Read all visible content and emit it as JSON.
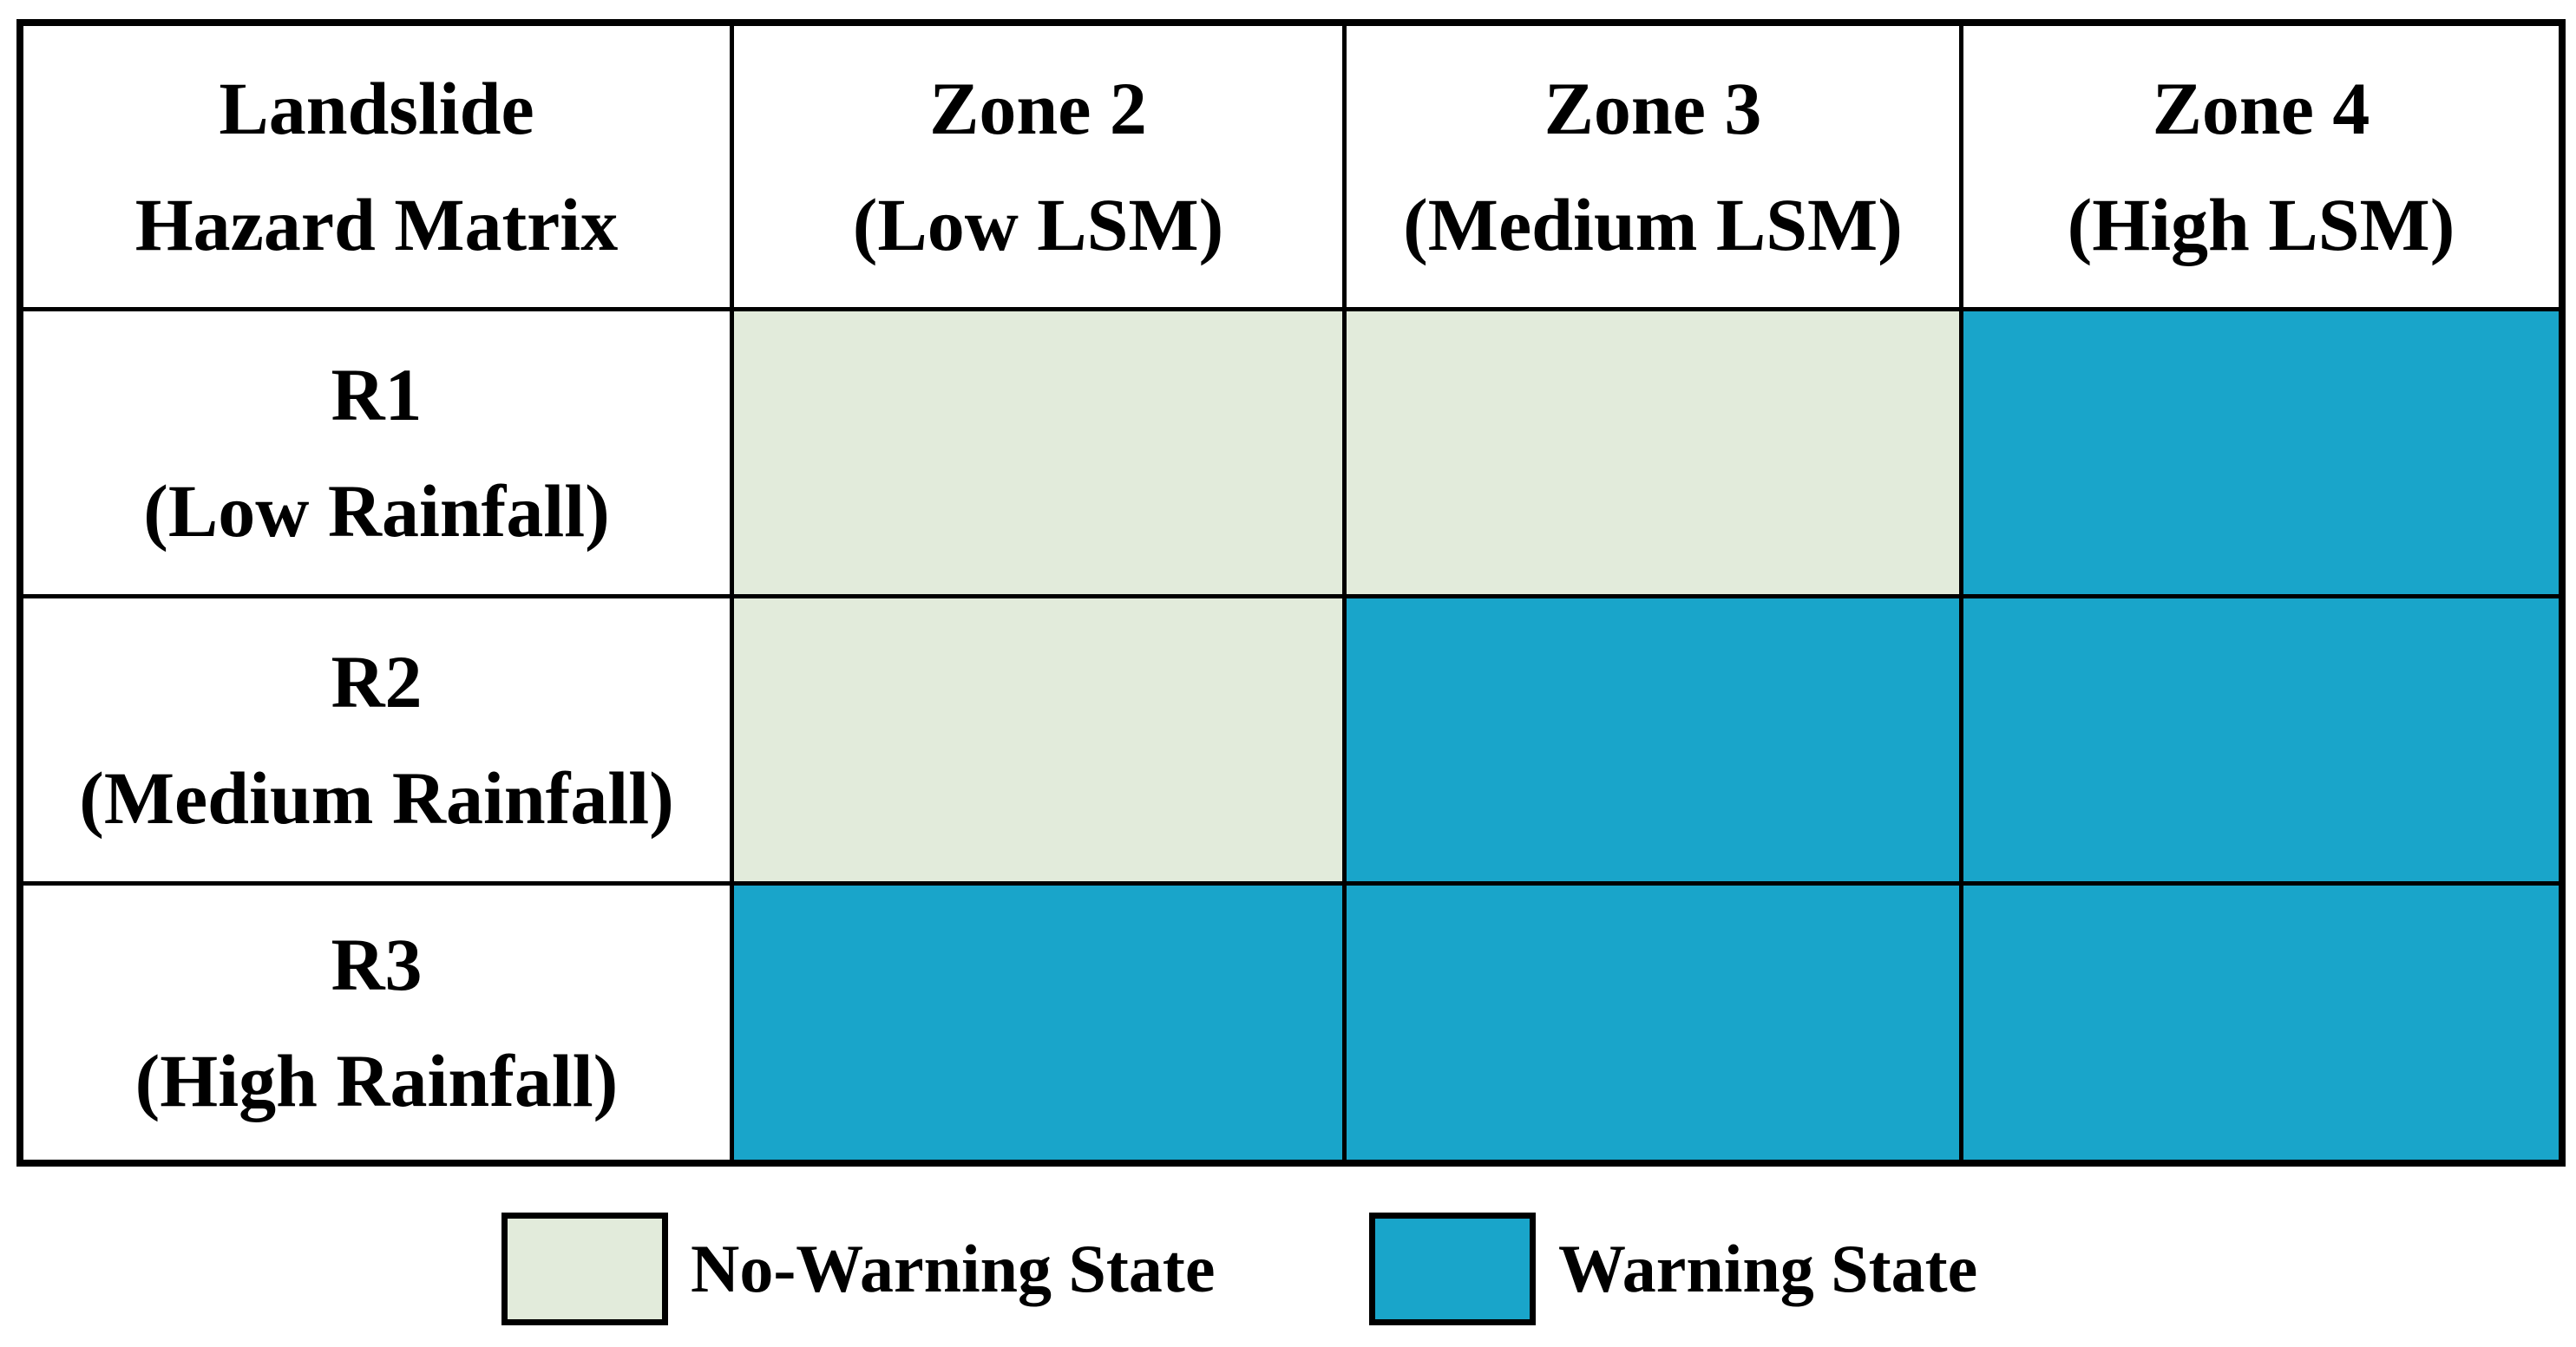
{
  "title": "Landslide Hazard Matrix",
  "colors": {
    "no_warning": "#e2ebdb",
    "warning": "#19a5ca",
    "border": "#000000",
    "text": "#000000",
    "background": "#ffffff"
  },
  "table": {
    "header": {
      "corner": {
        "line1": "Landslide",
        "line2": "Hazard Matrix"
      },
      "columns": [
        {
          "line1": "Zone 2",
          "line2": "(Low LSM)"
        },
        {
          "line1": "Zone 3",
          "line2": "(Medium LSM)"
        },
        {
          "line1": "Zone 4",
          "line2": "(High LSM)"
        }
      ]
    },
    "rows": [
      {
        "line1": "R1",
        "line2": "(Low Rainfall)",
        "cells": [
          "no-warning",
          "no-warning",
          "warning"
        ]
      },
      {
        "line1": "R2",
        "line2": "(Medium Rainfall)",
        "cells": [
          "no-warning",
          "warning",
          "warning"
        ]
      },
      {
        "line1": "R3",
        "line2": "(High Rainfall)",
        "cells": [
          "warning",
          "warning",
          "warning"
        ]
      }
    ]
  },
  "legend": {
    "items": [
      {
        "label": "No-Warning State",
        "state": "no-warning"
      },
      {
        "label": "Warning State",
        "state": "warning"
      }
    ]
  },
  "chart_data": {
    "type": "heatmap",
    "title": "Landslide Hazard Matrix",
    "columns": [
      "Zone 2 (Low LSM)",
      "Zone 3 (Medium LSM)",
      "Zone 4 (High LSM)"
    ],
    "rows": [
      "R1 (Low Rainfall)",
      "R2 (Medium Rainfall)",
      "R3 (High Rainfall)"
    ],
    "cell_states": [
      [
        "No-Warning",
        "No-Warning",
        "Warning"
      ],
      [
        "No-Warning",
        "Warning",
        "Warning"
      ],
      [
        "Warning",
        "Warning",
        "Warning"
      ]
    ],
    "legend": [
      {
        "label": "No-Warning State",
        "color": "#e2ebdb"
      },
      {
        "label": "Warning State",
        "color": "#19a5ca"
      }
    ],
    "legend_position": "bottom",
    "grid": true
  }
}
